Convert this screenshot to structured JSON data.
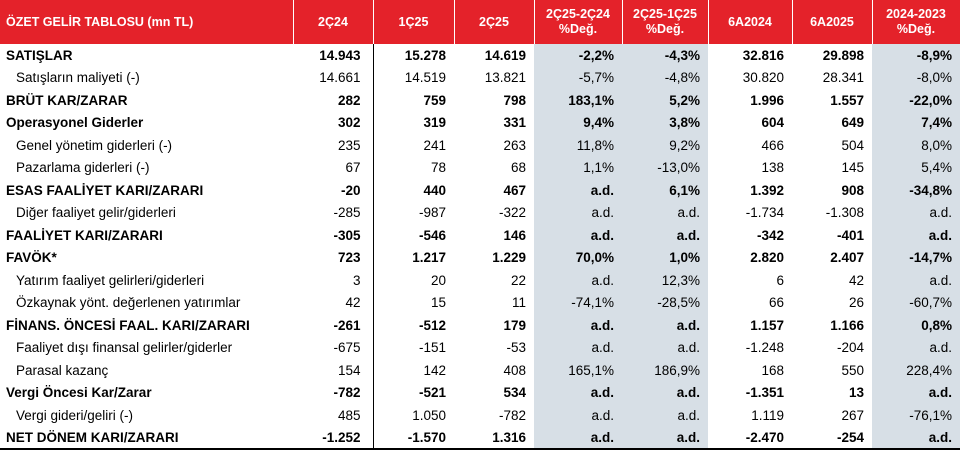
{
  "headers": [
    "ÖZET GELİR TABLOSU (mn TL)",
    "2Ç24",
    "1Ç25",
    "2Ç25",
    "2Ç25-2Ç24\n%Değ.",
    "2Ç25-1Ç25\n%Değ.",
    "6A2024",
    "6A2025",
    "2024-2023\n%Değ."
  ],
  "rows": [
    {
      "label": "SATIŞLAR",
      "bold": true,
      "indent": false,
      "cells": [
        "14.943",
        "15.278",
        "14.619",
        "-2,2%",
        "-4,3%",
        "32.816",
        "29.898",
        "-8,9%"
      ]
    },
    {
      "label": "Satışların maliyeti (-)",
      "bold": false,
      "indent": true,
      "cells": [
        "14.661",
        "14.519",
        "13.821",
        "-5,7%",
        "-4,8%",
        "30.820",
        "28.341",
        "-8,0%"
      ]
    },
    {
      "label": "BRÜT KAR/ZARAR",
      "bold": true,
      "indent": false,
      "cells": [
        "282",
        "759",
        "798",
        "183,1%",
        "5,2%",
        "1.996",
        "1.557",
        "-22,0%"
      ]
    },
    {
      "label": "Operasyonel Giderler",
      "bold": true,
      "indent": false,
      "cells": [
        "302",
        "319",
        "331",
        "9,4%",
        "3,8%",
        "604",
        "649",
        "7,4%"
      ]
    },
    {
      "label": "Genel yönetim giderleri (-)",
      "bold": false,
      "indent": true,
      "cells": [
        "235",
        "241",
        "263",
        "11,8%",
        "9,2%",
        "466",
        "504",
        "8,0%"
      ]
    },
    {
      "label": "Pazarlama giderleri (-)",
      "bold": false,
      "indent": true,
      "cells": [
        "67",
        "78",
        "68",
        "1,1%",
        "-13,0%",
        "138",
        "145",
        "5,4%"
      ]
    },
    {
      "label": "ESAS FAALİYET KARI/ZARARI",
      "bold": true,
      "indent": false,
      "cells": [
        "-20",
        "440",
        "467",
        "a.d.",
        "6,1%",
        "1.392",
        "908",
        "-34,8%"
      ]
    },
    {
      "label": "Diğer faaliyet gelir/giderleri",
      "bold": false,
      "indent": true,
      "cells": [
        "-285",
        "-987",
        "-322",
        "a.d.",
        "a.d.",
        "-1.734",
        "-1.308",
        "a.d."
      ]
    },
    {
      "label": "FAALİYET KARI/ZARARI",
      "bold": true,
      "indent": false,
      "cells": [
        "-305",
        "-546",
        "146",
        "a.d.",
        "a.d.",
        "-342",
        "-401",
        "a.d."
      ]
    },
    {
      "label": "FAVÖK*",
      "bold": true,
      "indent": false,
      "cells": [
        "723",
        "1.217",
        "1.229",
        "70,0%",
        "1,0%",
        "2.820",
        "2.407",
        "-14,7%"
      ]
    },
    {
      "label": "Yatırım faaliyet gelirleri/giderleri",
      "bold": false,
      "indent": true,
      "cells": [
        "3",
        "20",
        "22",
        "a.d.",
        "12,3%",
        "6",
        "42",
        "a.d."
      ]
    },
    {
      "label": "Özkaynak yönt. değerlenen yatırımlar",
      "bold": false,
      "indent": true,
      "cells": [
        "42",
        "15",
        "11",
        "-74,1%",
        "-28,5%",
        "66",
        "26",
        "-60,7%"
      ]
    },
    {
      "label": "FİNANS. ÖNCESİ FAAL. KARI/ZARARI",
      "bold": true,
      "indent": false,
      "cells": [
        "-261",
        "-512",
        "179",
        "a.d.",
        "a.d.",
        "1.157",
        "1.166",
        "0,8%"
      ]
    },
    {
      "label": "Faaliyet dışı finansal gelirler/giderler",
      "bold": false,
      "indent": true,
      "cells": [
        "-675",
        "-151",
        "-53",
        "a.d.",
        "a.d.",
        "-1.248",
        "-204",
        "a.d."
      ]
    },
    {
      "label": "Parasal kazanç",
      "bold": false,
      "indent": true,
      "cells": [
        "154",
        "142",
        "408",
        "165,1%",
        "186,9%",
        "168",
        "550",
        "228,4%"
      ]
    },
    {
      "label": "Vergi Öncesi Kar/Zarar",
      "bold": true,
      "indent": false,
      "cells": [
        "-782",
        "-521",
        "534",
        "a.d.",
        "a.d.",
        "-1.351",
        "13",
        "a.d."
      ]
    },
    {
      "label": "Vergi gideri/geliri (-)",
      "bold": false,
      "indent": true,
      "cells": [
        "485",
        "1.050",
        "-782",
        "a.d.",
        "a.d.",
        "1.119",
        "267",
        "-76,1%"
      ]
    },
    {
      "label": "NET DÖNEM KARI/ZARARI",
      "bold": true,
      "indent": false,
      "cells": [
        "-1.252",
        "-1.570",
        "1.316",
        "a.d.",
        "a.d.",
        "-2.470",
        "-254",
        "a.d."
      ]
    }
  ],
  "colors": {
    "header_bg": "#e4222a",
    "shade": "#d7dfe6"
  }
}
